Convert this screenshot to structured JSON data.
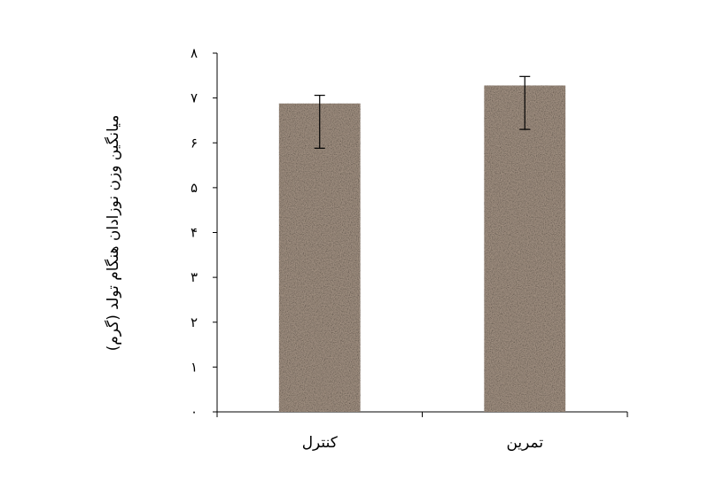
{
  "chart_data": {
    "type": "bar",
    "categories": [
      "کنترل",
      "تمرین"
    ],
    "values": [
      6.88,
      7.28
    ],
    "error_bars": [
      {
        "low": 5.88,
        "high": 7.06
      },
      {
        "low": 6.3,
        "high": 7.48
      }
    ],
    "ylabel": "میانگین وزن نوزادان هنگام تولد (گرم)",
    "xlabel": "",
    "title": "",
    "ylim": [
      0,
      8
    ],
    "yticks": [
      0,
      1,
      2,
      3,
      4,
      5,
      6,
      7,
      8
    ],
    "ytick_labels": [
      "۰",
      "۱",
      "۲",
      "۳",
      "۴",
      "۵",
      "۶",
      "۷",
      "۸"
    ],
    "grid": false,
    "legend": "none",
    "bar_color": "#a39283",
    "bar_texture": "granite"
  }
}
